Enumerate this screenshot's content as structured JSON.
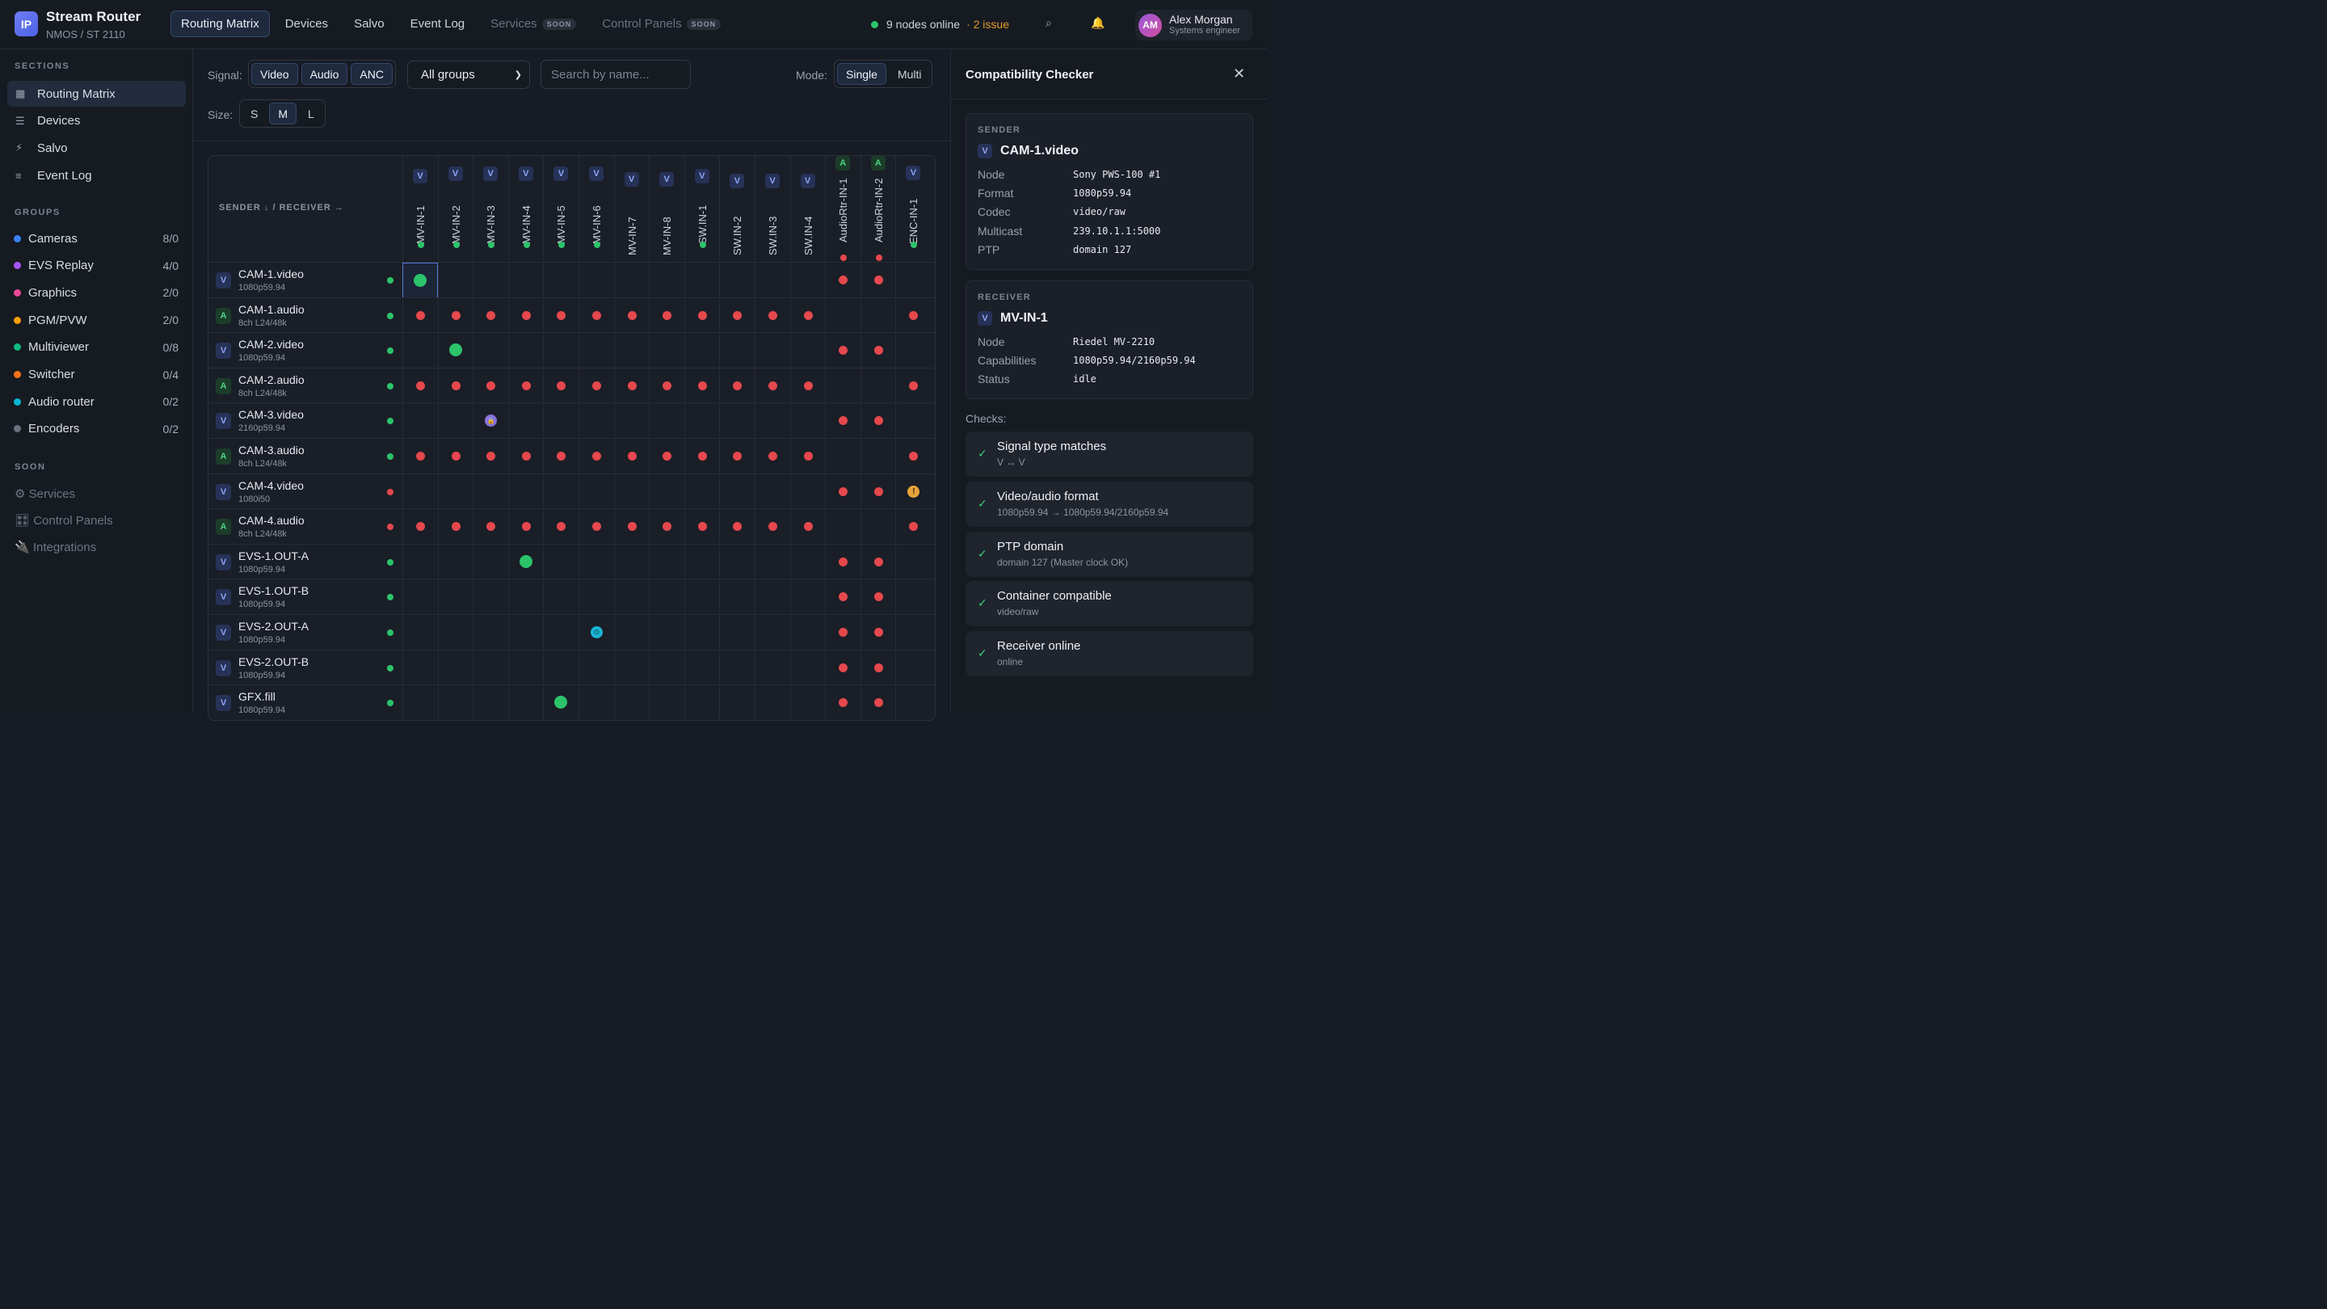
{
  "app": {
    "logo": "IP",
    "title": "Stream Router",
    "subtitle": "NMOS / ST 2110"
  },
  "nav": [
    {
      "label": "Routing Matrix",
      "active": true
    },
    {
      "label": "Devices"
    },
    {
      "label": "Salvo"
    },
    {
      "label": "Event Log"
    },
    {
      "label": "Services",
      "soon": "SOON"
    },
    {
      "label": "Control Panels",
      "soon": "SOON"
    }
  ],
  "status": {
    "nodes": "9 nodes online",
    "issues": "· 2 issue"
  },
  "icons": {
    "search": "search-icon",
    "bell": "bell-icon"
  },
  "user": {
    "initials": "AM",
    "name": "Alex Morgan",
    "role": "Systems engineer"
  },
  "sidebar": {
    "sections_label": "SECTIONS",
    "sections": [
      {
        "label": "Routing Matrix",
        "icon": "▦",
        "active": true
      },
      {
        "label": "Devices",
        "icon": "☰"
      },
      {
        "label": "Salvo",
        "icon": "⚡"
      },
      {
        "label": "Event Log",
        "icon": "≡"
      }
    ],
    "groups_label": "GROUPS",
    "groups": [
      {
        "label": "Cameras",
        "count": "8/0",
        "color": "#3b82f6"
      },
      {
        "label": "EVS Replay",
        "count": "4/0",
        "color": "#a855f7"
      },
      {
        "label": "Graphics",
        "count": "2/0",
        "color": "#ec4899"
      },
      {
        "label": "PGM/PVW",
        "count": "2/0",
        "color": "#f59e0b"
      },
      {
        "label": "Multiviewer",
        "count": "0/8",
        "color": "#10b981"
      },
      {
        "label": "Switcher",
        "count": "0/4",
        "color": "#f97316"
      },
      {
        "label": "Audio router",
        "count": "0/2",
        "color": "#06b6d4"
      },
      {
        "label": "Encoders",
        "count": "0/2",
        "color": "#6b7280"
      }
    ],
    "soon_label": "SOON",
    "soon": [
      {
        "label": "⚙ Services"
      },
      {
        "label": "🎛 Control Panels"
      },
      {
        "label": "🔌 Integrations"
      }
    ]
  },
  "toolbar": {
    "signal_label": "Signal:",
    "signals": [
      "Video",
      "Audio",
      "ANC"
    ],
    "group_select": "All groups",
    "search_placeholder": "Search by name...",
    "mode_label": "Mode:",
    "modes": [
      "Single",
      "Multi"
    ],
    "size_label": "Size:",
    "sizes": [
      "S",
      "M",
      "L"
    ]
  },
  "matrix": {
    "corner": "SENDER ↓ / RECEIVER →",
    "columns": [
      {
        "name": "MV-IN-1",
        "type": "V",
        "online": true
      },
      {
        "name": "MV-IN-2",
        "type": "V",
        "online": true
      },
      {
        "name": "MV-IN-3",
        "type": "V",
        "online": true
      },
      {
        "name": "MV-IN-4",
        "type": "V",
        "online": true
      },
      {
        "name": "MV-IN-5",
        "type": "V",
        "online": true
      },
      {
        "name": "MV-IN-6",
        "type": "V",
        "online": true
      },
      {
        "name": "MV-IN-7",
        "type": "V"
      },
      {
        "name": "MV-IN-8",
        "type": "V"
      },
      {
        "name": "SW.IN-1",
        "type": "V",
        "online": true
      },
      {
        "name": "SW.IN-2",
        "type": "V"
      },
      {
        "name": "SW.IN-3",
        "type": "V"
      },
      {
        "name": "SW.IN-4",
        "type": "V"
      },
      {
        "name": "AudioRtr-IN-1",
        "type": "A",
        "online": false
      },
      {
        "name": "AudioRtr-IN-2",
        "type": "A",
        "online": false
      },
      {
        "name": "ENC-IN-1",
        "type": "V",
        "online": true
      }
    ],
    "rows": [
      {
        "name": "CAM-1.video",
        "fmt": "1080p59.94",
        "type": "V",
        "online": true,
        "cells": [
          "G",
          "",
          "",
          "",
          "",
          "",
          "",
          "",
          "",
          "",
          "",
          "",
          "R",
          "R",
          ""
        ],
        "selected": 0
      },
      {
        "name": "CAM-1.audio",
        "fmt": "8ch L24/48k",
        "type": "A",
        "online": true,
        "cells": [
          "R",
          "R",
          "R",
          "R",
          "R",
          "R",
          "R",
          "R",
          "R",
          "R",
          "R",
          "R",
          "",
          "",
          "R"
        ]
      },
      {
        "name": "CAM-2.video",
        "fmt": "1080p59.94",
        "type": "V",
        "online": true,
        "cells": [
          "",
          "G",
          "",
          "",
          "",
          "",
          "",
          "",
          "",
          "",
          "",
          "",
          "R",
          "R",
          ""
        ]
      },
      {
        "name": "CAM-2.audio",
        "fmt": "8ch L24/48k",
        "type": "A",
        "online": true,
        "cells": [
          "R",
          "R",
          "R",
          "R",
          "R",
          "R",
          "R",
          "R",
          "R",
          "R",
          "R",
          "R",
          "",
          "",
          "R"
        ]
      },
      {
        "name": "CAM-3.video",
        "fmt": "2160p59.94",
        "type": "V",
        "online": true,
        "cells": [
          "",
          "",
          "P",
          "",
          "",
          "",
          "",
          "",
          "",
          "",
          "",
          "",
          "R",
          "R",
          ""
        ]
      },
      {
        "name": "CAM-3.audio",
        "fmt": "8ch L24/48k",
        "type": "A",
        "online": true,
        "cells": [
          "R",
          "R",
          "R",
          "R",
          "R",
          "R",
          "R",
          "R",
          "R",
          "R",
          "R",
          "R",
          "",
          "",
          "R"
        ]
      },
      {
        "name": "CAM-4.video",
        "fmt": "1080i50",
        "type": "V",
        "online": false,
        "cells": [
          "",
          "",
          "",
          "",
          "",
          "",
          "",
          "",
          "",
          "",
          "",
          "",
          "R",
          "R",
          "W"
        ]
      },
      {
        "name": "CAM-4.audio",
        "fmt": "8ch L24/48k",
        "type": "A",
        "online": false,
        "cells": [
          "R",
          "R",
          "R",
          "R",
          "R",
          "R",
          "R",
          "R",
          "R",
          "R",
          "R",
          "R",
          "",
          "",
          "R"
        ]
      },
      {
        "name": "EVS-1.OUT-A",
        "fmt": "1080p59.94",
        "type": "V",
        "online": true,
        "cells": [
          "",
          "",
          "",
          "G",
          "",
          "",
          "",
          "",
          "",
          "",
          "",
          "",
          "R",
          "R",
          ""
        ]
      },
      {
        "name": "EVS-1.OUT-B",
        "fmt": "1080p59.94",
        "type": "V",
        "online": true,
        "cells": [
          "",
          "",
          "",
          "",
          "",
          "",
          "",
          "",
          "",
          "",
          "",
          "",
          "R",
          "R",
          ""
        ]
      },
      {
        "name": "EVS-2.OUT-A",
        "fmt": "1080p59.94",
        "type": "V",
        "online": true,
        "cells": [
          "",
          "",
          "",
          "",
          "",
          "C",
          "",
          "",
          "",
          "",
          "",
          "",
          "R",
          "R",
          ""
        ]
      },
      {
        "name": "EVS-2.OUT-B",
        "fmt": "1080p59.94",
        "type": "V",
        "online": true,
        "cells": [
          "",
          "",
          "",
          "",
          "",
          "",
          "",
          "",
          "",
          "",
          "",
          "",
          "R",
          "R",
          ""
        ]
      },
      {
        "name": "GFX.fill",
        "fmt": "1080p59.94",
        "type": "V",
        "online": true,
        "cells": [
          "",
          "",
          "",
          "",
          "G",
          "",
          "",
          "",
          "",
          "",
          "",
          "",
          "R",
          "R",
          ""
        ]
      }
    ]
  },
  "panel": {
    "title": "Compatibility Checker",
    "sender": {
      "label": "SENDER",
      "type": "V",
      "name": "CAM-1.video",
      "fields": [
        {
          "k": "Node",
          "v": "Sony PWS-100 #1"
        },
        {
          "k": "Format",
          "v": "1080p59.94"
        },
        {
          "k": "Codec",
          "v": "video/raw"
        },
        {
          "k": "Multicast",
          "v": "239.10.1.1:5000"
        },
        {
          "k": "PTP",
          "v": "domain 127"
        }
      ]
    },
    "receiver": {
      "label": "RECEIVER",
      "type": "V",
      "name": "MV-IN-1",
      "fields": [
        {
          "k": "Node",
          "v": "Riedel MV-2210"
        },
        {
          "k": "Capabilities",
          "v": "1080p59.94/2160p59.94"
        },
        {
          "k": "Status",
          "v": "idle"
        }
      ]
    },
    "checks_label": "Checks:",
    "checks": [
      {
        "title": "Signal type matches",
        "sub": "V ↔ V"
      },
      {
        "title": "Video/audio format",
        "sub": "1080p59.94 → 1080p59.94/2160p59.94"
      },
      {
        "title": "PTP domain",
        "sub": "domain 127 (Master clock OK)"
      },
      {
        "title": "Container compatible",
        "sub": "video/raw"
      },
      {
        "title": "Receiver online",
        "sub": "online"
      }
    ]
  }
}
